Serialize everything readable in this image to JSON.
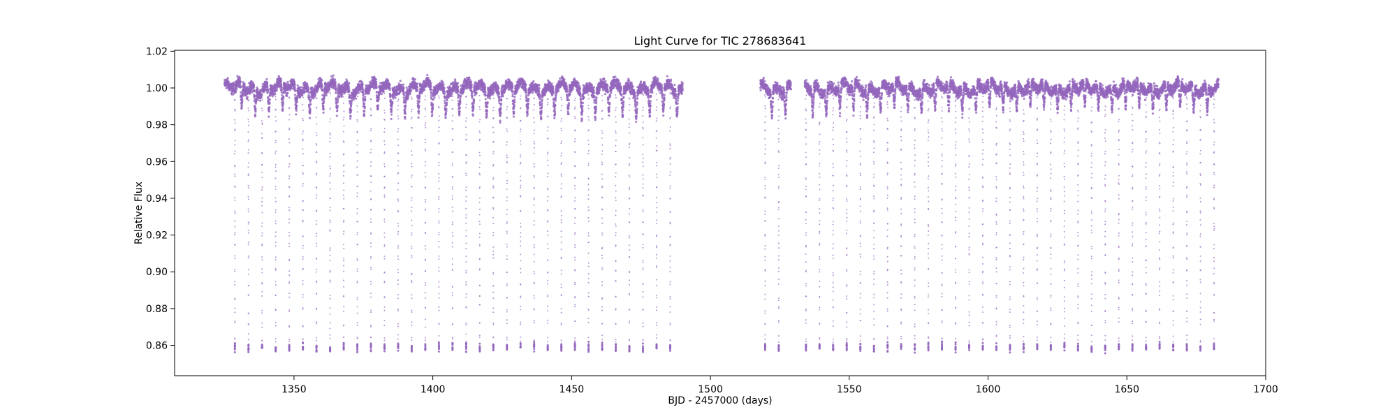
{
  "chart_data": {
    "type": "scatter",
    "title": "Light Curve for TIC 278683641",
    "xlabel": "BJD - 2457000 (days)",
    "ylabel": "Relative Flux",
    "xlim": [
      1307,
      1700
    ],
    "ylim": [
      0.8435,
      1.0205
    ],
    "x_ticks": [
      1350,
      1400,
      1450,
      1500,
      1550,
      1600,
      1650,
      1700
    ],
    "y_ticks": [
      0.86,
      0.88,
      0.9,
      0.92,
      0.94,
      0.96,
      0.98,
      1.0,
      1.02
    ],
    "x_tick_labels": [
      "1350",
      "1400",
      "1450",
      "1500",
      "1550",
      "1600",
      "1650",
      "1700"
    ],
    "y_tick_labels": [
      "0.86",
      "0.88",
      "0.90",
      "0.92",
      "0.94",
      "0.96",
      "0.98",
      "1.00",
      "1.02"
    ],
    "grid": false,
    "marker_color": "#9467bd",
    "data_segments": [
      [
        1325,
        1490
      ],
      [
        1518,
        1529
      ],
      [
        1534,
        1683
      ]
    ],
    "baseline_flux": 1.0,
    "baseline_scatter": 0.004,
    "secondary_eclipse_depth": 0.985,
    "primary_eclipse_min_flux": 0.859,
    "primary_eclipse_times": [
      1328.7,
      1333.6,
      1338.5,
      1343.4,
      1348.3,
      1353.2,
      1358.1,
      1363.0,
      1367.9,
      1372.8,
      1377.7,
      1382.6,
      1387.5,
      1392.4,
      1397.3,
      1402.2,
      1407.1,
      1412.0,
      1416.9,
      1421.8,
      1426.7,
      1431.6,
      1436.5,
      1441.4,
      1446.3,
      1451.2,
      1456.1,
      1461.0,
      1465.9,
      1470.8,
      1475.7,
      1480.6,
      1485.5,
      1519.7,
      1524.6,
      1529.5,
      1534.4,
      1539.3,
      1544.2,
      1549.1,
      1554.0,
      1558.9,
      1563.8,
      1568.7,
      1573.6,
      1578.5,
      1583.4,
      1588.3,
      1593.2,
      1598.1,
      1603.0,
      1607.9,
      1612.8,
      1617.7,
      1622.6,
      1627.5,
      1632.4,
      1637.3,
      1642.2,
      1647.1,
      1652.0,
      1656.9,
      1661.8,
      1666.7,
      1671.6,
      1676.5,
      1681.4
    ]
  }
}
